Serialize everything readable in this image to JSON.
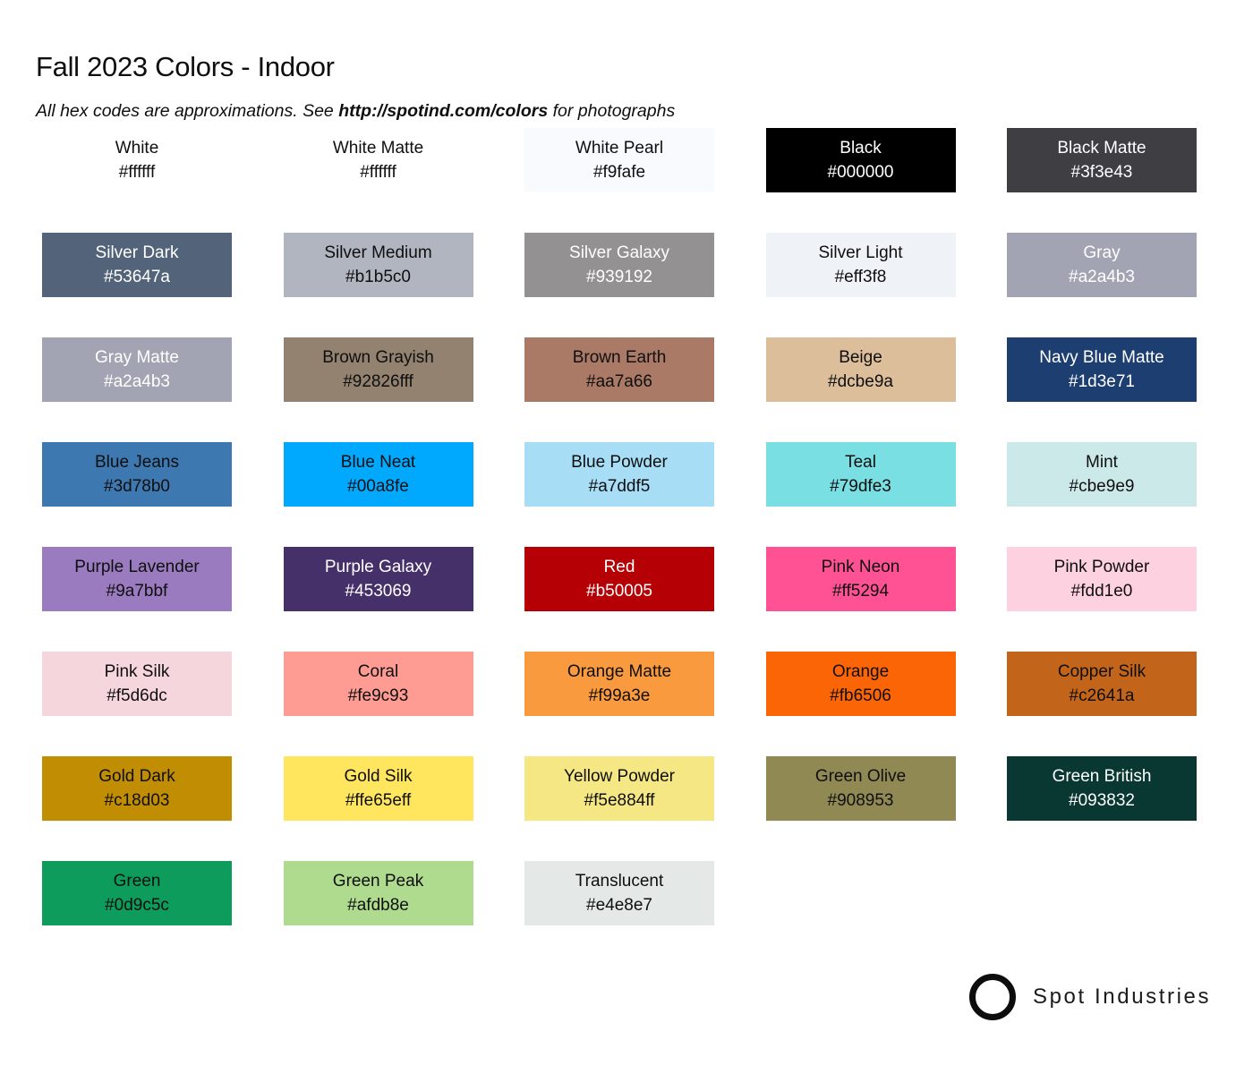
{
  "header": {
    "title": "Fall 2023 Colors - Indoor",
    "subtitle_prefix": "All hex codes are approximations. See ",
    "subtitle_link": "http://spotind.com/colors",
    "subtitle_suffix": " for photographs"
  },
  "swatches": [
    {
      "name": "White",
      "hex": "#ffffff",
      "bg": "#ffffff",
      "text": "dark"
    },
    {
      "name": "White Matte",
      "hex": "#ffffff",
      "bg": "#ffffff",
      "text": "dark"
    },
    {
      "name": "White Pearl",
      "hex": "#f9fafe",
      "bg": "#f9fafe",
      "text": "dark"
    },
    {
      "name": "Black",
      "hex": "#000000",
      "bg": "#000000",
      "text": "light"
    },
    {
      "name": "Black Matte",
      "hex": "#3f3e43",
      "bg": "#3f3e43",
      "text": "light"
    },
    {
      "name": "Silver Dark",
      "hex": "#53647a",
      "bg": "#53647a",
      "text": "light"
    },
    {
      "name": "Silver Medium",
      "hex": "#b1b5c0",
      "bg": "#b1b5c0",
      "text": "dark"
    },
    {
      "name": "Silver Galaxy",
      "hex": "#939192",
      "bg": "#939192",
      "text": "light"
    },
    {
      "name": "Silver Light",
      "hex": "#eff3f8",
      "bg": "#eff3f8",
      "text": "dark"
    },
    {
      "name": "Gray",
      "hex": "#a2a4b3",
      "bg": "#a2a4b3",
      "text": "light"
    },
    {
      "name": "Gray Matte",
      "hex": "#a2a4b3",
      "bg": "#a2a4b3",
      "text": "light"
    },
    {
      "name": "Brown Grayish",
      "hex": "#92826fff",
      "bg": "#92826f",
      "text": "dark"
    },
    {
      "name": "Brown Earth",
      "hex": "#aa7a66",
      "bg": "#aa7a66",
      "text": "dark"
    },
    {
      "name": "Beige",
      "hex": "#dcbe9a",
      "bg": "#dcbe9a",
      "text": "dark"
    },
    {
      "name": "Navy Blue Matte",
      "hex": "#1d3e71",
      "bg": "#1d3e71",
      "text": "light"
    },
    {
      "name": "Blue Jeans",
      "hex": "#3d78b0",
      "bg": "#3d78b0",
      "text": "dark"
    },
    {
      "name": "Blue Neat",
      "hex": "#00a8fe",
      "bg": "#00a8fe",
      "text": "dark"
    },
    {
      "name": "Blue Powder",
      "hex": "#a7ddf5",
      "bg": "#a7ddf5",
      "text": "dark"
    },
    {
      "name": "Teal",
      "hex": "#79dfe3",
      "bg": "#79dfe3",
      "text": "dark"
    },
    {
      "name": "Mint",
      "hex": "#cbe9e9",
      "bg": "#cbe9e9",
      "text": "dark"
    },
    {
      "name": "Purple Lavender",
      "hex": "#9a7bbf",
      "bg": "#9a7bbf",
      "text": "dark"
    },
    {
      "name": "Purple Galaxy",
      "hex": "#453069",
      "bg": "#453069",
      "text": "light"
    },
    {
      "name": "Red",
      "hex": "#b50005",
      "bg": "#b50005",
      "text": "light"
    },
    {
      "name": "Pink Neon",
      "hex": "#ff5294",
      "bg": "#ff5294",
      "text": "dark"
    },
    {
      "name": "Pink Powder",
      "hex": "#fdd1e0",
      "bg": "#fdd1e0",
      "text": "dark"
    },
    {
      "name": "Pink Silk",
      "hex": "#f5d6dc",
      "bg": "#f5d6dc",
      "text": "dark"
    },
    {
      "name": "Coral",
      "hex": "#fe9c93",
      "bg": "#fe9c93",
      "text": "dark"
    },
    {
      "name": "Orange Matte",
      "hex": "#f99a3e",
      "bg": "#f99a3e",
      "text": "dark"
    },
    {
      "name": "Orange",
      "hex": "#fb6506",
      "bg": "#fb6506",
      "text": "dark"
    },
    {
      "name": "Copper Silk",
      "hex": "#c2641a",
      "bg": "#c2641a",
      "text": "dark"
    },
    {
      "name": "Gold Dark",
      "hex": "#c18d03",
      "bg": "#c18d03",
      "text": "dark"
    },
    {
      "name": "Gold Silk",
      "hex": "#ffe65eff",
      "bg": "#ffe65e",
      "text": "dark"
    },
    {
      "name": "Yellow Powder",
      "hex": "#f5e884ff",
      "bg": "#f5e884",
      "text": "dark"
    },
    {
      "name": "Green Olive",
      "hex": "#908953",
      "bg": "#908953",
      "text": "dark"
    },
    {
      "name": "Green British",
      "hex": "#093832",
      "bg": "#093832",
      "text": "light"
    },
    {
      "name": "Green",
      "hex": "#0d9c5c",
      "bg": "#0d9c5c",
      "text": "dark"
    },
    {
      "name": "Green Peak",
      "hex": "#afdb8e",
      "bg": "#afdb8e",
      "text": "dark"
    },
    {
      "name": "Translucent",
      "hex": "#e4e8e7",
      "bg": "#e4e8e7",
      "text": "dark"
    }
  ],
  "footer": {
    "brand": "Spot Industries"
  }
}
